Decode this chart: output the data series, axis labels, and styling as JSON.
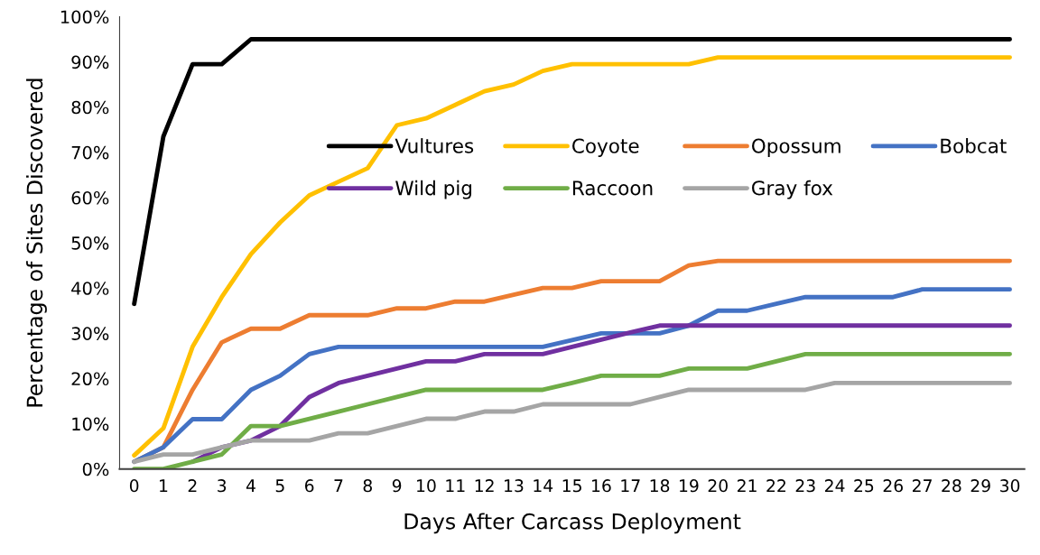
{
  "chart_data": {
    "type": "line",
    "xlabel": "Days After Carcass Deployment",
    "ylabel": "Percentage of Sites Discovered",
    "x": [
      0,
      1,
      2,
      3,
      4,
      5,
      6,
      7,
      8,
      9,
      10,
      11,
      12,
      13,
      14,
      15,
      16,
      17,
      18,
      19,
      20,
      21,
      22,
      23,
      24,
      25,
      26,
      27,
      28,
      29,
      30
    ],
    "xlim": [
      -0.5,
      30.5
    ],
    "xticks": [
      0,
      1,
      2,
      3,
      4,
      5,
      6,
      7,
      8,
      9,
      10,
      11,
      12,
      13,
      14,
      15,
      16,
      17,
      18,
      19,
      20,
      21,
      22,
      23,
      24,
      25,
      26,
      27,
      28,
      29,
      30
    ],
    "ylim": [
      0,
      100
    ],
    "yticks": [
      {
        "value": 0,
        "label": "0%"
      },
      {
        "value": 10,
        "label": "10%"
      },
      {
        "value": 20,
        "label": "20%"
      },
      {
        "value": 30,
        "label": "30%"
      },
      {
        "value": 40,
        "label": "40%"
      },
      {
        "value": 50,
        "label": "50%"
      },
      {
        "value": 60,
        "label": "60%"
      },
      {
        "value": 70,
        "label": "70%"
      },
      {
        "value": 80,
        "label": "80%"
      },
      {
        "value": 90,
        "label": "90%"
      },
      {
        "value": 100,
        "label": "100%"
      }
    ],
    "grid": false,
    "legend": "top right",
    "marker": "none",
    "line_style": "solid",
    "series": [
      {
        "name": "Vultures",
        "color": "#000000",
        "values": [
          36.5,
          73.5,
          89.5,
          89.5,
          95,
          95,
          95,
          95,
          95,
          95,
          95,
          95,
          95,
          95,
          95,
          95,
          95,
          95,
          95,
          95,
          95,
          95,
          95,
          95,
          95,
          95,
          95,
          95,
          95,
          95,
          95
        ]
      },
      {
        "name": "Coyote",
        "color": "#ffc000",
        "values": [
          3,
          9,
          27,
          38,
          47.5,
          54.5,
          60.5,
          63.5,
          66.5,
          76,
          77.5,
          80.5,
          83.5,
          85,
          88,
          89.5,
          89.5,
          89.5,
          89.5,
          89.5,
          91,
          91,
          91,
          91,
          91,
          91,
          91,
          91,
          91,
          91,
          91
        ]
      },
      {
        "name": "Opossum",
        "color": "#ed7d31",
        "values": [
          1.6,
          4.8,
          17.5,
          28,
          31,
          31,
          34,
          34,
          34,
          35.5,
          35.5,
          37,
          37,
          38.5,
          40,
          40,
          41.5,
          41.5,
          41.5,
          45,
          46,
          46,
          46,
          46,
          46,
          46,
          46,
          46,
          46,
          46,
          46
        ]
      },
      {
        "name": "Bobcat",
        "color": "#4472c4",
        "values": [
          1.6,
          4.8,
          11,
          11,
          17.5,
          20.6,
          25.4,
          27,
          27,
          27,
          27,
          27,
          27,
          27,
          27,
          28.5,
          30,
          30,
          30,
          31.7,
          35,
          35,
          36.5,
          38,
          38,
          38,
          38,
          39.7,
          39.7,
          39.7,
          39.7
        ]
      },
      {
        "name": "Wild pig",
        "color": "#7030a0",
        "values": [
          null,
          null,
          1.6,
          4.8,
          6.3,
          9.5,
          15.9,
          19,
          20.6,
          22.2,
          23.8,
          23.8,
          25.4,
          25.4,
          25.4,
          27,
          28.6,
          30.2,
          31.7,
          31.7,
          31.7,
          31.7,
          31.7,
          31.7,
          31.7,
          31.7,
          31.7,
          31.7,
          31.7,
          31.7,
          31.7
        ]
      },
      {
        "name": "Raccoon",
        "color": "#70ad47",
        "values": [
          0,
          0,
          1.6,
          3.2,
          9.5,
          9.5,
          11.1,
          12.7,
          14.3,
          15.9,
          17.5,
          17.5,
          17.5,
          17.5,
          17.5,
          19,
          20.6,
          20.6,
          20.6,
          22.2,
          22.2,
          22.2,
          23.8,
          25.4,
          25.4,
          25.4,
          25.4,
          25.4,
          25.4,
          25.4,
          25.4
        ]
      },
      {
        "name": "Gray fox",
        "color": "#a5a5a5",
        "values": [
          1.6,
          3.2,
          3.2,
          4.8,
          6.3,
          6.3,
          6.3,
          7.9,
          7.9,
          9.5,
          11.1,
          11.1,
          12.7,
          12.7,
          14.3,
          14.3,
          14.3,
          14.3,
          15.9,
          17.5,
          17.5,
          17.5,
          17.5,
          17.5,
          19,
          19,
          19,
          19,
          19,
          19,
          19
        ]
      }
    ]
  }
}
